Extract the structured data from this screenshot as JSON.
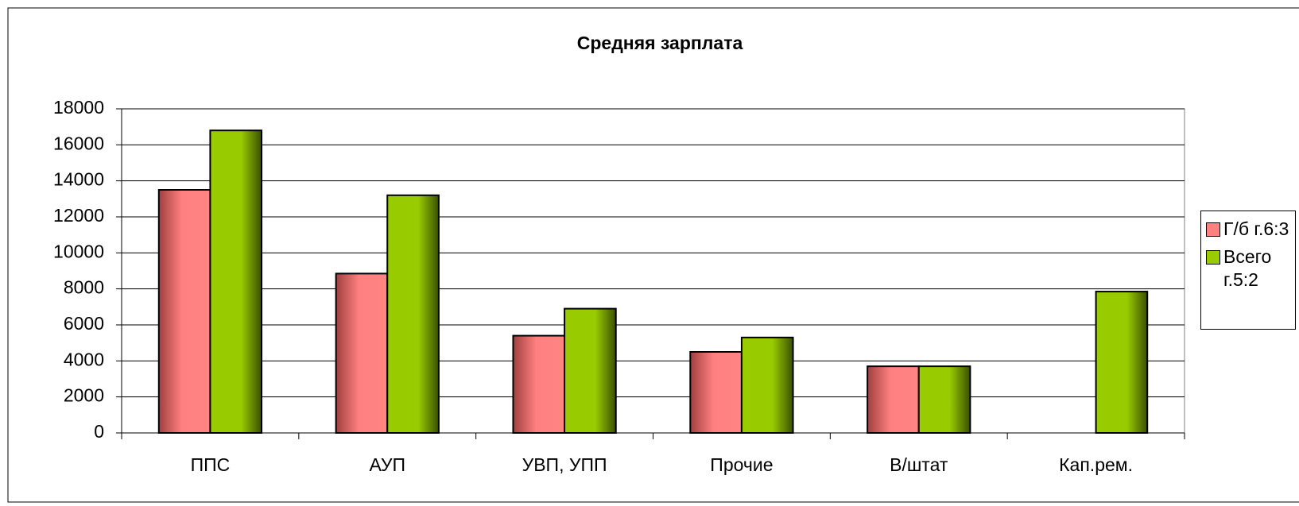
{
  "chart_data": {
    "type": "bar",
    "title": "Средняя зарплата",
    "categories": [
      "ППС",
      "АУП",
      "УВП, УПП",
      "Прочие",
      "В/штат",
      "Кап.рем."
    ],
    "series": [
      {
        "name": "Г/б г.6:3",
        "color": "#ff8080",
        "values": [
          13500,
          8850,
          5400,
          4500,
          3700,
          null
        ]
      },
      {
        "name": "Всего г.5:2",
        "color": "#99cc00",
        "values": [
          16800,
          13200,
          6900,
          5300,
          3700,
          7850
        ]
      }
    ],
    "ylim": [
      0,
      18000
    ],
    "yticks": [
      0,
      2000,
      4000,
      6000,
      8000,
      10000,
      12000,
      14000,
      16000,
      18000
    ],
    "grid": true,
    "legend": "right"
  }
}
